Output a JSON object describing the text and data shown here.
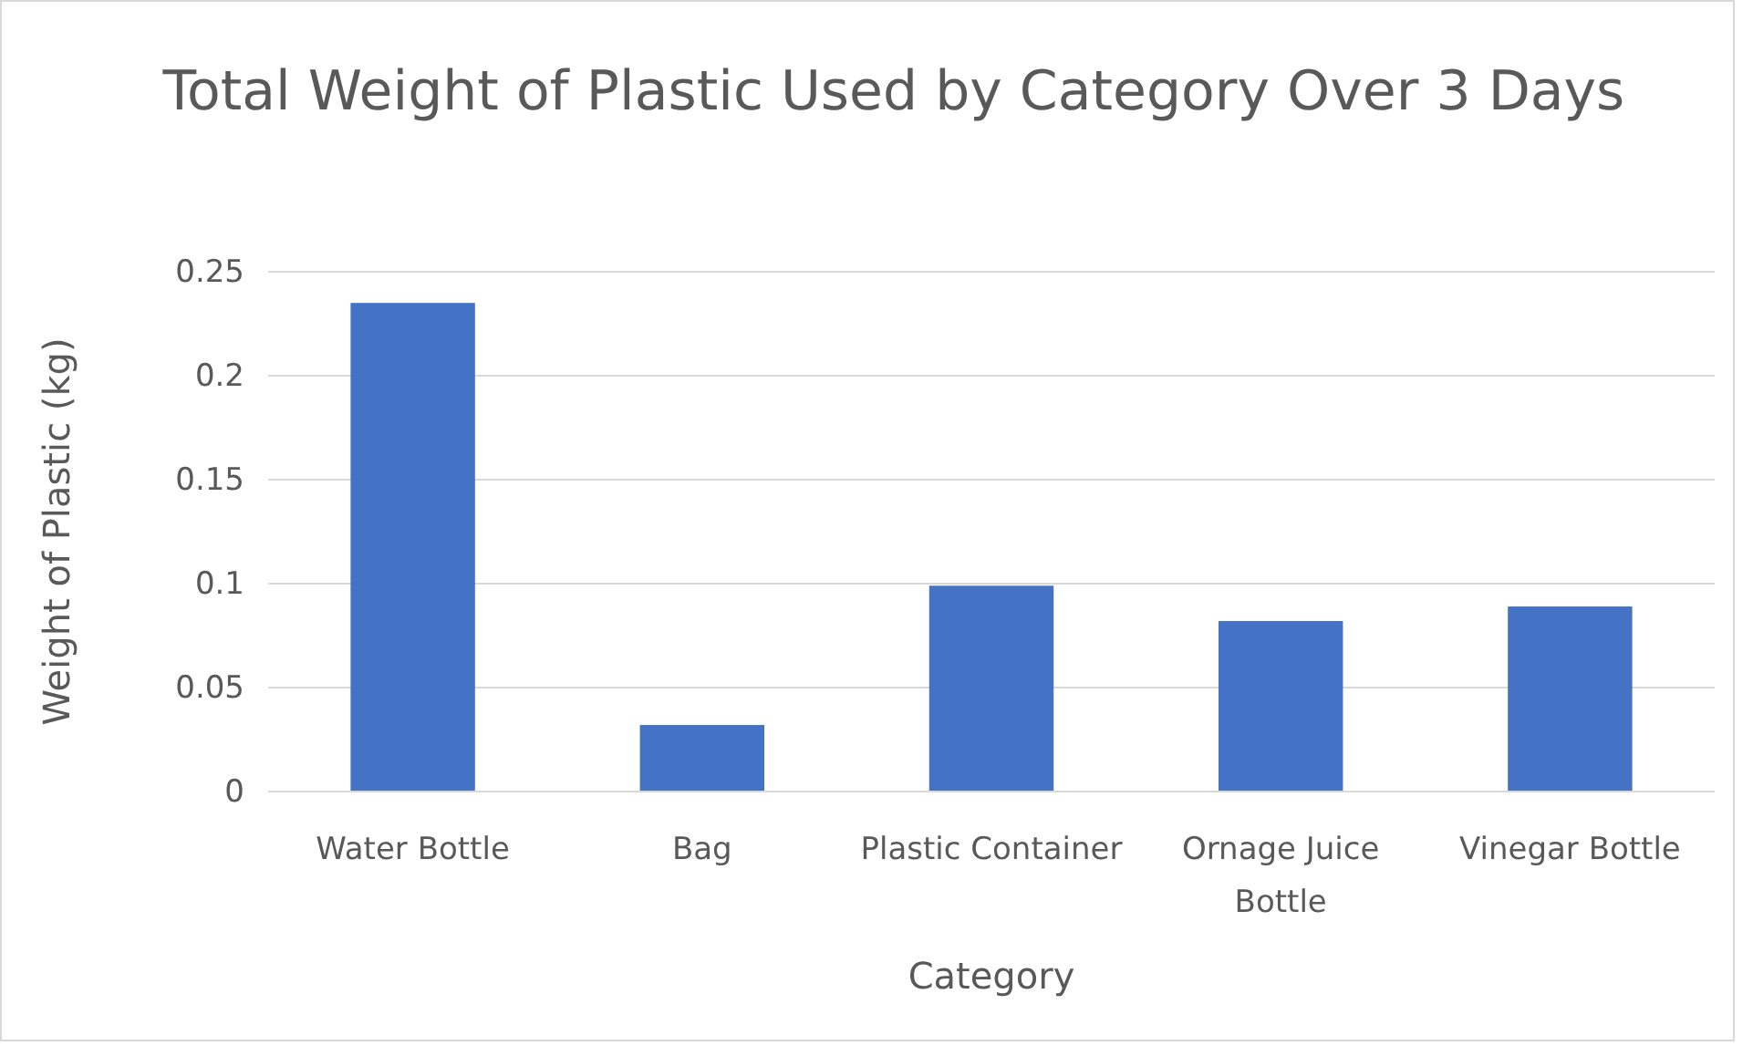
{
  "chart_data": {
    "type": "bar",
    "title": "Total Weight of Plastic Used by Category Over 3 Days",
    "xlabel": "Category",
    "ylabel": "Weight of Plastic (kg)",
    "categories": [
      "Water Bottle",
      "Bag",
      "Plastic Container",
      "Ornage Juice Bottle",
      "Vinegar Bottle"
    ],
    "values": [
      0.235,
      0.032,
      0.099,
      0.082,
      0.089
    ],
    "color": "#4472c4",
    "ylim": [
      0,
      0.25
    ],
    "yticks": [
      0,
      0.05,
      0.1,
      0.15,
      0.2,
      0.25
    ],
    "grid": "y"
  }
}
